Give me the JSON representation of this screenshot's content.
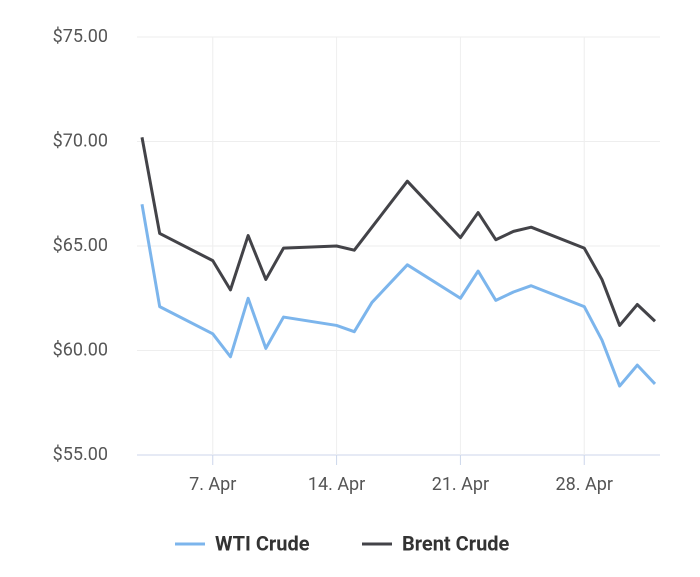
{
  "chart_data": {
    "type": "line",
    "x": [
      3,
      4,
      7,
      8,
      9,
      10,
      11,
      14,
      15,
      16,
      18,
      21,
      22,
      23,
      24,
      25,
      28,
      29,
      30,
      31,
      32
    ],
    "series": [
      {
        "name": "WTI Crude",
        "color": "#7cb5ec",
        "values": [
          67.0,
          62.1,
          60.8,
          59.7,
          62.5,
          60.1,
          61.6,
          61.2,
          60.9,
          62.3,
          64.1,
          62.5,
          63.8,
          62.4,
          62.8,
          63.1,
          62.1,
          60.5,
          58.3,
          59.3,
          58.4
        ]
      },
      {
        "name": "Brent Crude",
        "color": "#434348",
        "values": [
          70.2,
          65.6,
          64.3,
          62.9,
          65.5,
          63.4,
          64.9,
          65.0,
          64.8,
          65.9,
          68.1,
          65.4,
          66.6,
          65.3,
          65.7,
          65.9,
          64.9,
          63.4,
          61.2,
          62.2,
          61.4
        ]
      }
    ],
    "xlim": [
      3,
      32
    ],
    "xticks": [
      {
        "value": 7,
        "label": "7. Apr"
      },
      {
        "value": 14,
        "label": "14. Apr"
      },
      {
        "value": 21,
        "label": "21. Apr"
      },
      {
        "value": 28,
        "label": "28. Apr"
      }
    ],
    "ylim": [
      55,
      75
    ],
    "yticks": [
      {
        "value": 55,
        "label": "$55.00"
      },
      {
        "value": 60,
        "label": "$60.00"
      },
      {
        "value": 65,
        "label": "$65.00"
      },
      {
        "value": 70,
        "label": "$70.00"
      },
      {
        "value": 75,
        "label": "$75.00"
      }
    ],
    "grid": true
  }
}
